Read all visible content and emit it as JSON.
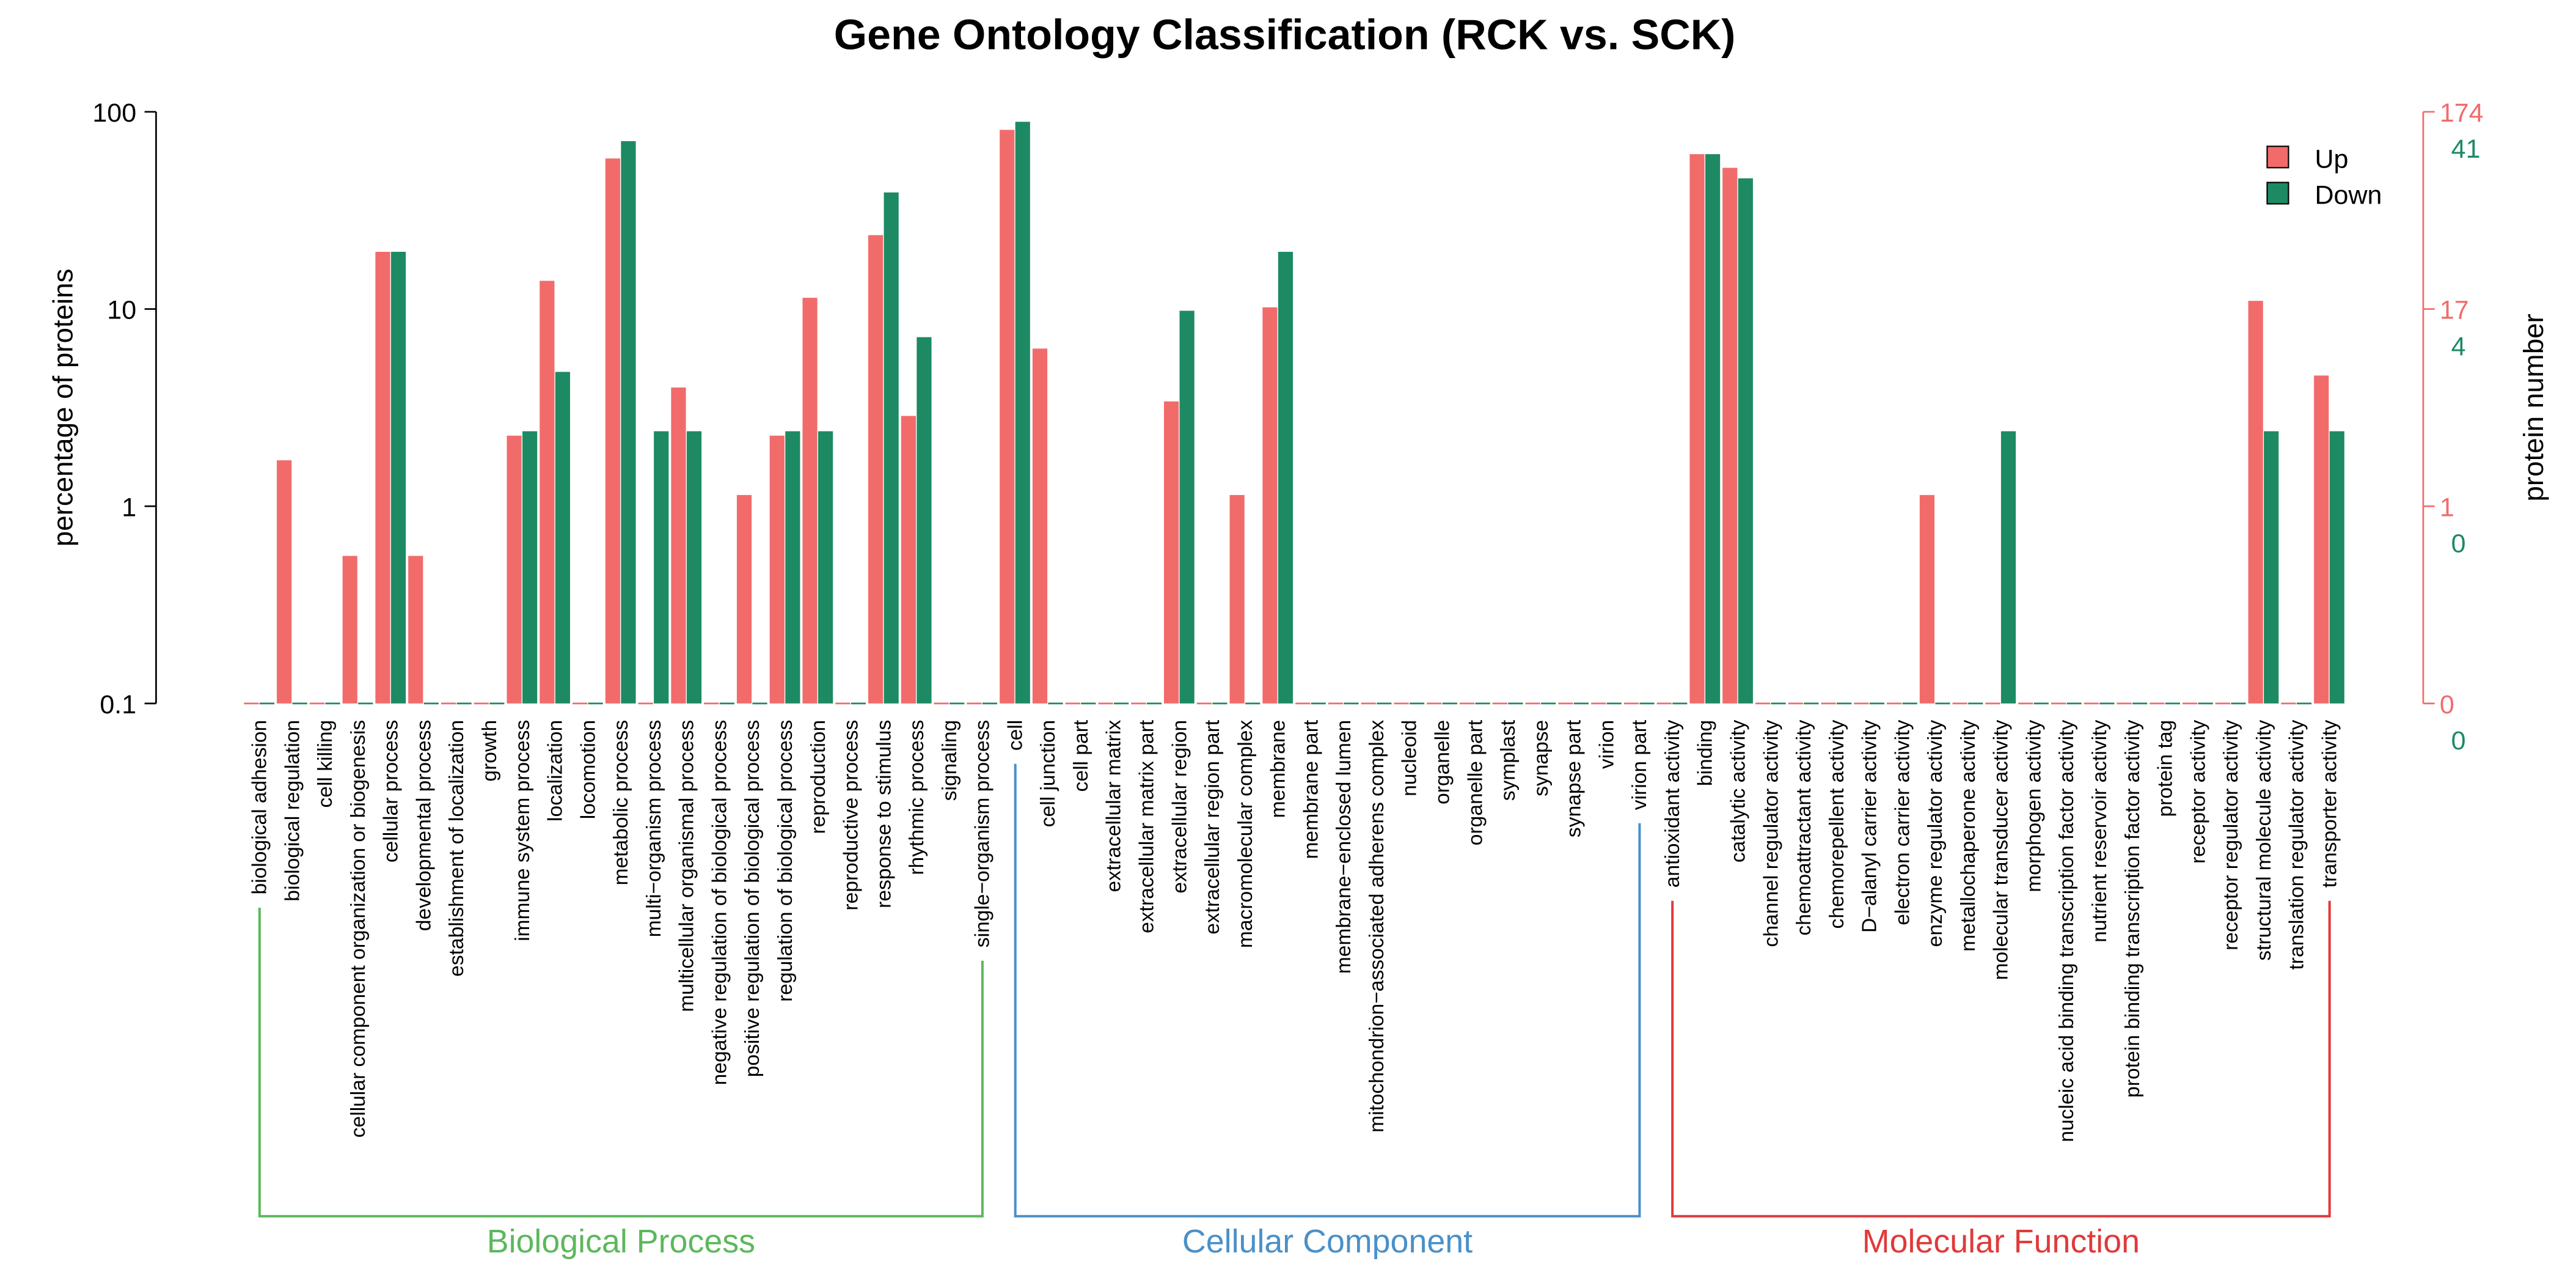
{
  "chart_data": {
    "type": "bar",
    "title": "Gene Ontology Classification (RCK vs. SCK)",
    "ylabel": "percentage of proteins",
    "y2label": "protein number",
    "log_scale": true,
    "legend": "top-right",
    "categories": [
      "biological adhesion",
      "biological regulation",
      "cell killing",
      "cellular component organization or biogenesis",
      "cellular process",
      "developmental process",
      "establishment of localization",
      "growth",
      "immune system process",
      "localization",
      "locomotion",
      "metabolic process",
      "multi−organism process",
      "multicellular organismal process",
      "negative regulation of biological process",
      "positive regulation of biological process",
      "regulation of biological process",
      "reproduction",
      "reproductive process",
      "response to stimulus",
      "rhythmic process",
      "signaling",
      "single−organism process",
      "cell",
      "cell junction",
      "cell part",
      "extracellular matrix",
      "extracellular matrix part",
      "extracellular region",
      "extracellular region part",
      "macromolecular complex",
      "membrane",
      "membrane part",
      "membrane−enclosed lumen",
      "mitochondrion−associated adherens complex",
      "nucleoid",
      "organelle",
      "organelle part",
      "symplast",
      "synapse",
      "synapse part",
      "virion",
      "virion part",
      "antioxidant activity",
      "binding",
      "catalytic activity",
      "channel regulator activity",
      "chemoattractant activity",
      "chemorepellent activity",
      "D−alanyl carrier activity",
      "electron carrier activity",
      "enzyme regulator activity",
      "metallochaperone activity",
      "molecular transducer activity",
      "morphogen activity",
      "nucleic acid binding transcription factor activity",
      "nutrient reservoir activity",
      "protein binding transcription factor activity",
      "protein tag",
      "receptor activity",
      "receptor regulator activity",
      "structural molecule activity",
      "translation regulator activity",
      "transporter activity"
    ],
    "series": [
      {
        "name": "Up",
        "color": "#f26b6b",
        "values": [
          0,
          1.71,
          0,
          0.56,
          19.5,
          0.56,
          0,
          0,
          2.28,
          13.9,
          0,
          58,
          0,
          4.0,
          0,
          1.14,
          2.28,
          11.4,
          0,
          23.7,
          2.87,
          0,
          0,
          81,
          6.3,
          0,
          0,
          0,
          3.4,
          0,
          1.14,
          10.2,
          0,
          0,
          0,
          0,
          0,
          0,
          0,
          0,
          0,
          0,
          0,
          0,
          61,
          52,
          0,
          0,
          0,
          0,
          0,
          1.14,
          0,
          0,
          0,
          0,
          0,
          0,
          0,
          0,
          0,
          11,
          0,
          4.6
        ]
      },
      {
        "name": "Down",
        "color": "#1d8a63",
        "values": [
          0,
          0,
          0,
          0,
          19.5,
          0,
          0,
          0,
          2.4,
          4.8,
          0,
          71,
          2.4,
          2.4,
          0,
          0,
          2.4,
          2.4,
          0,
          39,
          7.2,
          0,
          0,
          89,
          0,
          0,
          0,
          0,
          9.8,
          0,
          0,
          19.5,
          0,
          0,
          0,
          0,
          0,
          0,
          0,
          0,
          0,
          0,
          0,
          0,
          61,
          46,
          0,
          0,
          0,
          0,
          0,
          0,
          0,
          2.4,
          0,
          0,
          0,
          0,
          0,
          0,
          0,
          2.4,
          0,
          2.4
        ]
      }
    ],
    "ylim": [
      0.1,
      100
    ],
    "yticks": [
      0.1,
      1,
      10,
      100
    ],
    "y2ticks": [
      {
        "value": 100,
        "label": "174"
      },
      {
        "value": 10,
        "label": "17"
      },
      {
        "value": 1,
        "label": "1"
      },
      {
        "value": 0.1,
        "label": "0"
      }
    ],
    "y2ticks_down": [
      {
        "value": 100,
        "label": "41"
      },
      {
        "value": 10,
        "label": "4"
      },
      {
        "value": 1,
        "label": "0"
      },
      {
        "value": 0.1,
        "label": "0"
      }
    ],
    "groups": [
      {
        "name": "Biological Process",
        "start": 0,
        "end": 22,
        "color": "#5cb85c"
      },
      {
        "name": "Cellular Component",
        "start": 23,
        "end": 42,
        "color": "#4a90c8"
      },
      {
        "name": "Molecular Function",
        "start": 43,
        "end": 63,
        "color": "#e03a3a"
      }
    ]
  }
}
